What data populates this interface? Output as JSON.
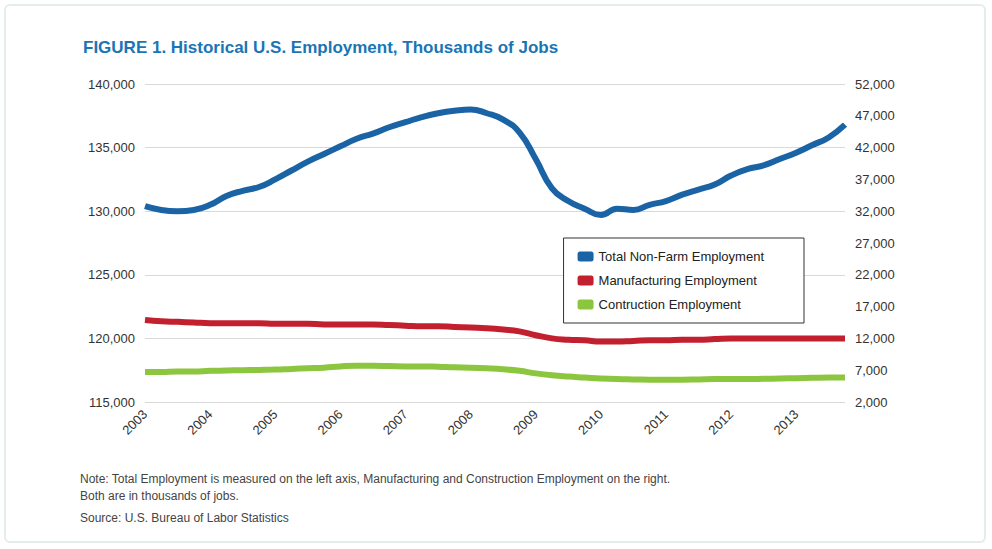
{
  "chart_data": {
    "type": "line",
    "title": "FIGURE 1. Historical U.S. Employment, Thousands of Jobs",
    "notes": [
      "Note: Total Employment is measured on the left axis, Manufacturing and Construction Employment on the right.",
      "Both are in thousands of jobs."
    ],
    "source": "Source: U.S. Bureau of Labor Statistics",
    "categories": [
      "2003",
      null,
      null,
      null,
      "2004",
      null,
      null,
      null,
      "2005",
      null,
      null,
      null,
      "2006",
      null,
      null,
      null,
      "2007",
      null,
      null,
      null,
      "2008",
      null,
      null,
      null,
      "2009",
      null,
      null,
      null,
      "2010",
      null,
      null,
      null,
      "2011",
      null,
      null,
      null,
      "2012",
      null,
      null,
      null,
      "2013",
      null,
      null,
      null
    ],
    "series": [
      {
        "name": "Total Non-Farm Employment",
        "color": "#1a64a6",
        "values": [
          130400,
          130100,
          130000,
          130100,
          130500,
          131200,
          131600,
          131900,
          132500,
          133200,
          133900,
          134500,
          135100,
          135700,
          136100,
          136600,
          137000,
          137400,
          137700,
          137900,
          138000,
          137700,
          137200,
          136200,
          134100,
          131800,
          130800,
          130200,
          129700,
          130200,
          130100,
          130500,
          130800,
          131300,
          131700,
          132100,
          132800,
          133300,
          133600,
          134100,
          134600,
          135200,
          135800,
          136800
        ]
      },
      {
        "name": "Manufacturing Employment",
        "color": "#c3202f",
        "axis": "y2",
        "values": [
          14900,
          14700,
          14600,
          14500,
          14400,
          14400,
          14400,
          14400,
          14300,
          14300,
          14300,
          14200,
          14200,
          14200,
          14200,
          14100,
          14000,
          13900,
          13900,
          13800,
          13700,
          13600,
          13400,
          13100,
          12500,
          12000,
          11800,
          11700,
          11500,
          11500,
          11600,
          11700,
          11700,
          11800,
          11800,
          11900,
          12000,
          12000,
          12000,
          12000,
          12000,
          12000,
          12000,
          12000
        ]
      },
      {
        "name": "Contruction Employment",
        "color": "#8cc63f",
        "axis": "y2",
        "values": [
          6700,
          6700,
          6800,
          6800,
          6900,
          6950,
          7000,
          7050,
          7100,
          7200,
          7300,
          7400,
          7600,
          7700,
          7700,
          7650,
          7600,
          7600,
          7550,
          7450,
          7400,
          7300,
          7150,
          6900,
          6500,
          6200,
          6000,
          5850,
          5700,
          5600,
          5550,
          5500,
          5500,
          5500,
          5550,
          5600,
          5600,
          5600,
          5650,
          5700,
          5750,
          5800,
          5850,
          5850
        ]
      }
    ],
    "ylim": [
      115000,
      140000
    ],
    "yticks": [
      {
        "value": 115000,
        "label": "115,000"
      },
      {
        "value": 120000,
        "label": "120,000"
      },
      {
        "value": 125000,
        "label": "125,000"
      },
      {
        "value": 130000,
        "label": "130,000"
      },
      {
        "value": 135000,
        "label": "135,000"
      },
      {
        "value": 140000,
        "label": "140,000"
      }
    ],
    "y2lim": [
      2000,
      52000
    ],
    "y2ticks": [
      {
        "value": 2000,
        "label": "2,000"
      },
      {
        "value": 7000,
        "label": "7,000"
      },
      {
        "value": 12000,
        "label": "12,000"
      },
      {
        "value": 17000,
        "label": "17,000"
      },
      {
        "value": 22000,
        "label": "22,000"
      },
      {
        "value": 27000,
        "label": "27,000"
      },
      {
        "value": 32000,
        "label": "32,000"
      },
      {
        "value": 37000,
        "label": "37,000"
      },
      {
        "value": 42000,
        "label": "42,000"
      },
      {
        "value": 47000,
        "label": "47,000"
      },
      {
        "value": 52000,
        "label": "52,000"
      }
    ],
    "grid": true,
    "legend": "right"
  }
}
